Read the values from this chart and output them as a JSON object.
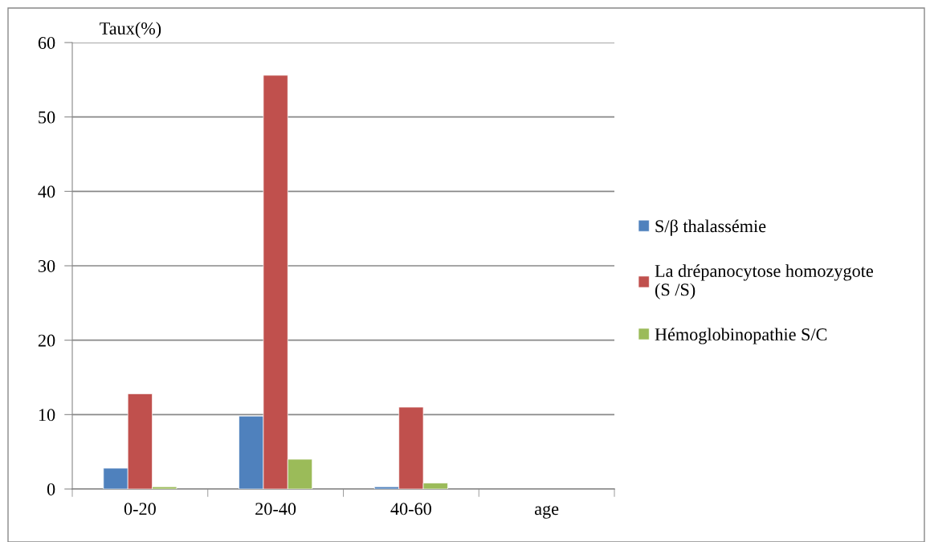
{
  "chart_data": {
    "type": "bar",
    "ylabel": "Taux(%)",
    "categories": [
      "0-20",
      "20-40",
      "40-60",
      "age"
    ],
    "series": [
      {
        "name": "S/β thalassémie",
        "color": "#4f81bd",
        "values": [
          2.8,
          9.8,
          0.3,
          null
        ]
      },
      {
        "name": "La drépanocytose homozygote\n(S /S)",
        "color": "#c0504d",
        "values": [
          12.8,
          55.6,
          11.0,
          null
        ]
      },
      {
        "name": "Hémoglobinopathie S/C",
        "color": "#9bbb59",
        "values": [
          0.3,
          4.0,
          0.8,
          null
        ]
      }
    ],
    "ylim": [
      0,
      60
    ],
    "yticks": [
      0,
      10,
      20,
      30,
      40,
      50,
      60
    ],
    "grid": "y",
    "legend": "right"
  }
}
